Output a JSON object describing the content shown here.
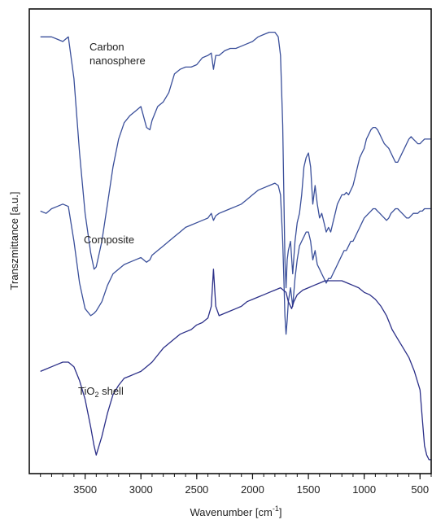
{
  "chart_data": {
    "type": "line",
    "title": "",
    "xlabel": "Wavenumber [cm",
    "xlabel_sup": "-1",
    "xlabel_end": "]",
    "ylabel": "Transzmittance [a.u.]",
    "x_reversed": true,
    "xlim": [
      4000,
      400
    ],
    "x_ticks": [
      3500,
      3000,
      2500,
      2000,
      1500,
      1000,
      500
    ],
    "x_minor_step": 100,
    "grid": false,
    "colors": {
      "Carbon nanosphere": "#3a4f9a",
      "Composite": "#3a4f9a",
      "TiO2 shell": "#2b2f88"
    },
    "labels": {
      "carbon_1": "Carbon",
      "carbon_2": "nanosphere",
      "composite": "Composite",
      "tio2_a": "TiO",
      "tio2_sub": "2",
      "tio2_b": " shell"
    },
    "series": [
      {
        "name": "Carbon nanosphere",
        "x": [
          3900,
          3850,
          3800,
          3750,
          3700,
          3650,
          3600,
          3550,
          3500,
          3450,
          3420,
          3400,
          3350,
          3300,
          3250,
          3200,
          3150,
          3100,
          3050,
          3000,
          2950,
          2920,
          2900,
          2850,
          2800,
          2750,
          2700,
          2650,
          2600,
          2550,
          2500,
          2450,
          2400,
          2370,
          2350,
          2330,
          2300,
          2250,
          2200,
          2150,
          2100,
          2050,
          2000,
          1950,
          1900,
          1850,
          1800,
          1770,
          1750,
          1730,
          1720,
          1710,
          1700,
          1690,
          1680,
          1660,
          1640,
          1620,
          1600,
          1580,
          1560,
          1540,
          1520,
          1500,
          1480,
          1460,
          1440,
          1420,
          1400,
          1380,
          1360,
          1340,
          1320,
          1300,
          1280,
          1260,
          1240,
          1220,
          1200,
          1180,
          1160,
          1140,
          1120,
          1100,
          1080,
          1060,
          1040,
          1020,
          1000,
          980,
          960,
          940,
          920,
          900,
          880,
          860,
          840,
          820,
          800,
          780,
          760,
          740,
          720,
          700,
          680,
          660,
          640,
          620,
          600,
          580,
          560,
          540,
          520,
          500,
          480,
          460,
          440,
          420,
          400
        ],
        "y": [
          0.94,
          0.94,
          0.94,
          0.935,
          0.93,
          0.94,
          0.85,
          0.69,
          0.56,
          0.475,
          0.44,
          0.445,
          0.5,
          0.58,
          0.66,
          0.72,
          0.755,
          0.77,
          0.78,
          0.79,
          0.745,
          0.74,
          0.76,
          0.79,
          0.8,
          0.82,
          0.86,
          0.87,
          0.875,
          0.875,
          0.88,
          0.895,
          0.9,
          0.905,
          0.87,
          0.9,
          0.9,
          0.91,
          0.915,
          0.915,
          0.92,
          0.925,
          0.93,
          0.94,
          0.945,
          0.95,
          0.95,
          0.94,
          0.9,
          0.75,
          0.6,
          0.46,
          0.4,
          0.46,
          0.48,
          0.5,
          0.43,
          0.5,
          0.54,
          0.56,
          0.6,
          0.66,
          0.68,
          0.69,
          0.66,
          0.58,
          0.62,
          0.58,
          0.55,
          0.56,
          0.54,
          0.52,
          0.53,
          0.52,
          0.54,
          0.56,
          0.58,
          0.59,
          0.6,
          0.6,
          0.605,
          0.6,
          0.61,
          0.62,
          0.64,
          0.66,
          0.68,
          0.69,
          0.7,
          0.72,
          0.73,
          0.74,
          0.745,
          0.745,
          0.74,
          0.73,
          0.72,
          0.71,
          0.705,
          0.7,
          0.69,
          0.68,
          0.67,
          0.67,
          0.68,
          0.69,
          0.7,
          0.71,
          0.72,
          0.725,
          0.72,
          0.715,
          0.71,
          0.71,
          0.715,
          0.72,
          0.72,
          0.72,
          0.72
        ]
      },
      {
        "name": "Composite",
        "x": [
          3900,
          3850,
          3800,
          3750,
          3700,
          3650,
          3600,
          3550,
          3500,
          3450,
          3420,
          3400,
          3350,
          3300,
          3250,
          3200,
          3150,
          3100,
          3050,
          3000,
          2950,
          2920,
          2900,
          2850,
          2800,
          2750,
          2700,
          2650,
          2600,
          2550,
          2500,
          2450,
          2400,
          2370,
          2350,
          2330,
          2300,
          2250,
          2200,
          2150,
          2100,
          2050,
          2000,
          1950,
          1900,
          1850,
          1800,
          1770,
          1750,
          1730,
          1720,
          1710,
          1700,
          1690,
          1680,
          1660,
          1640,
          1620,
          1600,
          1580,
          1560,
          1540,
          1520,
          1500,
          1480,
          1460,
          1440,
          1420,
          1400,
          1380,
          1360,
          1340,
          1320,
          1300,
          1280,
          1260,
          1240,
          1220,
          1200,
          1180,
          1160,
          1140,
          1120,
          1100,
          1080,
          1060,
          1040,
          1020,
          1000,
          980,
          960,
          940,
          920,
          900,
          880,
          860,
          840,
          820,
          800,
          780,
          760,
          740,
          720,
          700,
          680,
          660,
          640,
          620,
          600,
          580,
          560,
          540,
          520,
          500,
          480,
          460,
          440,
          420,
          400
        ],
        "y": [
          0.565,
          0.56,
          0.57,
          0.575,
          0.58,
          0.575,
          0.5,
          0.41,
          0.355,
          0.34,
          0.345,
          0.35,
          0.37,
          0.405,
          0.43,
          0.44,
          0.45,
          0.455,
          0.46,
          0.465,
          0.455,
          0.46,
          0.47,
          0.48,
          0.49,
          0.5,
          0.51,
          0.52,
          0.53,
          0.535,
          0.54,
          0.545,
          0.55,
          0.56,
          0.545,
          0.555,
          0.56,
          0.565,
          0.57,
          0.575,
          0.58,
          0.59,
          0.6,
          0.61,
          0.615,
          0.62,
          0.625,
          0.62,
          0.6,
          0.5,
          0.42,
          0.34,
          0.3,
          0.33,
          0.37,
          0.4,
          0.36,
          0.42,
          0.46,
          0.49,
          0.5,
          0.51,
          0.52,
          0.52,
          0.5,
          0.46,
          0.48,
          0.45,
          0.44,
          0.43,
          0.42,
          0.41,
          0.42,
          0.42,
          0.43,
          0.44,
          0.45,
          0.46,
          0.47,
          0.48,
          0.48,
          0.49,
          0.5,
          0.5,
          0.51,
          0.52,
          0.53,
          0.54,
          0.55,
          0.555,
          0.56,
          0.565,
          0.57,
          0.57,
          0.565,
          0.56,
          0.555,
          0.55,
          0.545,
          0.55,
          0.56,
          0.565,
          0.57,
          0.57,
          0.565,
          0.56,
          0.555,
          0.55,
          0.55,
          0.555,
          0.56,
          0.56,
          0.56,
          0.565,
          0.565,
          0.57,
          0.57,
          0.57,
          0.57
        ]
      },
      {
        "name": "TiO2 shell",
        "x": [
          3900,
          3850,
          3800,
          3750,
          3700,
          3650,
          3600,
          3550,
          3500,
          3450,
          3420,
          3400,
          3350,
          3300,
          3250,
          3200,
          3150,
          3100,
          3050,
          3000,
          2950,
          2900,
          2850,
          2800,
          2750,
          2700,
          2650,
          2600,
          2550,
          2500,
          2450,
          2400,
          2370,
          2350,
          2330,
          2300,
          2250,
          2200,
          2150,
          2100,
          2050,
          2000,
          1950,
          1900,
          1850,
          1800,
          1750,
          1700,
          1680,
          1650,
          1630,
          1600,
          1550,
          1500,
          1450,
          1400,
          1350,
          1300,
          1250,
          1200,
          1150,
          1100,
          1050,
          1000,
          950,
          900,
          850,
          800,
          750,
          700,
          650,
          600,
          550,
          500,
          480,
          460,
          440,
          420,
          400
        ],
        "y": [
          0.22,
          0.225,
          0.23,
          0.235,
          0.24,
          0.24,
          0.23,
          0.2,
          0.16,
          0.1,
          0.06,
          0.04,
          0.08,
          0.13,
          0.17,
          0.19,
          0.205,
          0.21,
          0.215,
          0.22,
          0.23,
          0.24,
          0.255,
          0.27,
          0.28,
          0.29,
          0.3,
          0.305,
          0.31,
          0.32,
          0.325,
          0.335,
          0.36,
          0.44,
          0.36,
          0.34,
          0.345,
          0.35,
          0.355,
          0.36,
          0.37,
          0.375,
          0.38,
          0.385,
          0.39,
          0.395,
          0.4,
          0.39,
          0.37,
          0.355,
          0.37,
          0.385,
          0.395,
          0.4,
          0.405,
          0.41,
          0.415,
          0.415,
          0.415,
          0.415,
          0.41,
          0.405,
          0.4,
          0.39,
          0.385,
          0.375,
          0.36,
          0.34,
          0.31,
          0.29,
          0.27,
          0.25,
          0.22,
          0.18,
          0.12,
          0.06,
          0.04,
          0.03,
          0.03
        ]
      }
    ]
  }
}
